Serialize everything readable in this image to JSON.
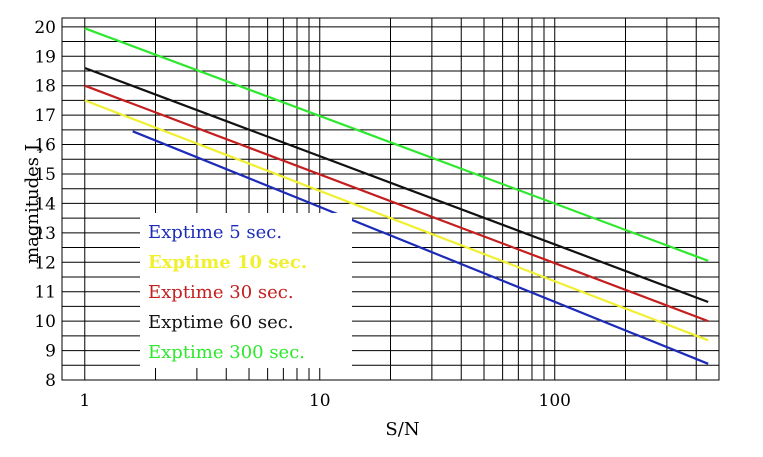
{
  "chart_data": {
    "type": "line",
    "title": "",
    "xlabel": "S/N",
    "ylabel": "magnitudes J",
    "xscale": "log",
    "xlim": [
      0.8,
      500
    ],
    "ylim": [
      8,
      20.3
    ],
    "grid": true,
    "legend_position": "bottom-left",
    "x_ticks": [
      {
        "value": 1,
        "label": "1"
      },
      {
        "value": 10,
        "label": "10"
      },
      {
        "value": 100,
        "label": "100"
      }
    ],
    "y_ticks": [
      {
        "value": 8,
        "label": "8"
      },
      {
        "value": 9,
        "label": "9"
      },
      {
        "value": 10,
        "label": "10"
      },
      {
        "value": 11,
        "label": "11"
      },
      {
        "value": 12,
        "label": "12"
      },
      {
        "value": 13,
        "label": "13"
      },
      {
        "value": 14,
        "label": "14"
      },
      {
        "value": 15,
        "label": "15"
      },
      {
        "value": 16,
        "label": "16"
      },
      {
        "value": 17,
        "label": "17"
      },
      {
        "value": 18,
        "label": "18"
      },
      {
        "value": 19,
        "label": "19"
      },
      {
        "value": 20,
        "label": "20"
      }
    ],
    "series": [
      {
        "name": "Exptime 5 sec.",
        "color": "#1c2bb8",
        "x": [
          1.6,
          450
        ],
        "y": [
          16.45,
          8.55
        ]
      },
      {
        "name": "Exptime 10 sec.",
        "color": "#f0f030",
        "x": [
          1,
          450
        ],
        "y": [
          17.5,
          9.35
        ]
      },
      {
        "name": "Exptime 30 sec.",
        "color": "#c41e1e",
        "x": [
          1,
          450
        ],
        "y": [
          18.0,
          10.0
        ]
      },
      {
        "name": "Exptime 60 sec.",
        "color": "#111111",
        "x": [
          1,
          450
        ],
        "y": [
          18.6,
          10.65
        ]
      },
      {
        "name": "Exptime 300 sec.",
        "color": "#2ee82e",
        "x": [
          1,
          450
        ],
        "y": [
          19.95,
          12.05
        ]
      }
    ]
  }
}
